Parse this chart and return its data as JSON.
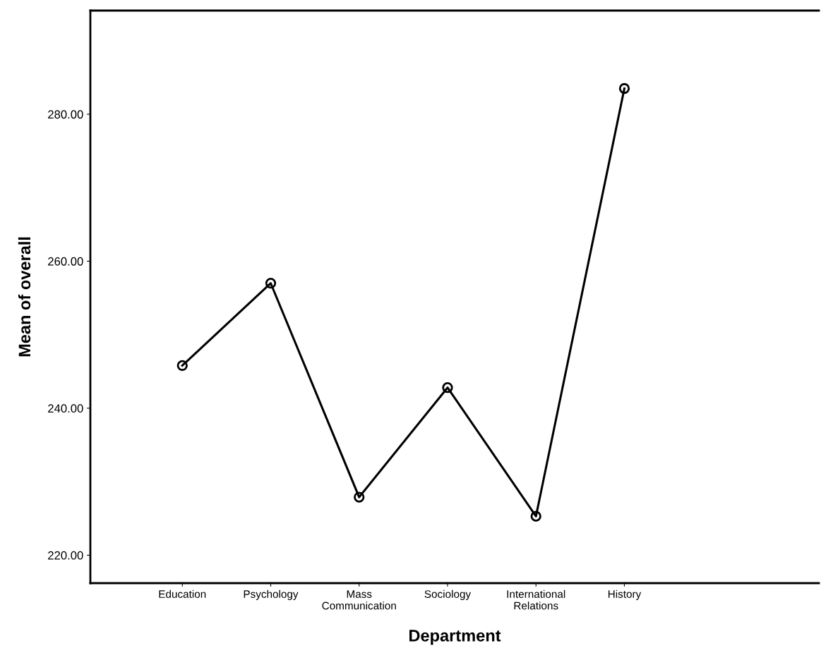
{
  "chart_data": {
    "type": "line",
    "xlabel": "Department",
    "ylabel": "Mean of overall",
    "categories": [
      "Education",
      "Psychology",
      "Mass\nCommunication",
      "Sociology",
      "International\nRelations",
      "History"
    ],
    "series": [
      {
        "color": "#000000",
        "values": [
          245.8,
          257.0,
          227.9,
          242.8,
          225.3,
          283.5
        ]
      }
    ],
    "ylim": [
      216.2,
      294.1
    ],
    "yticks": [
      {
        "value": 220,
        "label": "220.00"
      },
      {
        "value": 240,
        "label": "240.00"
      },
      {
        "value": 260,
        "label": "260.00"
      },
      {
        "value": 280,
        "label": "280.00"
      }
    ],
    "marker": "circle",
    "line_style": "solid",
    "grid": false,
    "legend": false
  }
}
